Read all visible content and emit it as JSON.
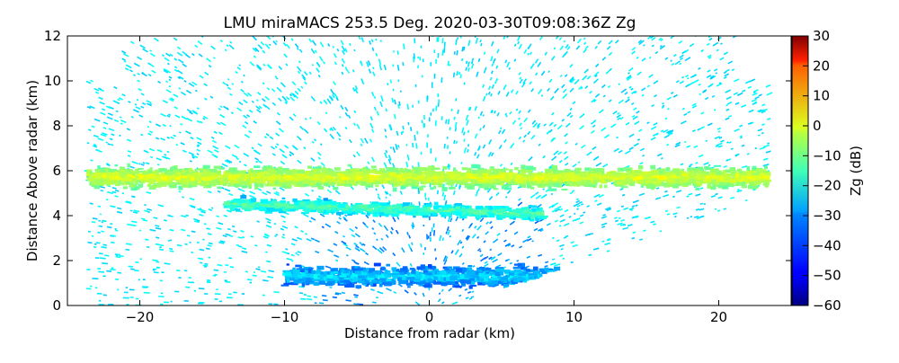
{
  "chart_data": {
    "type": "heatmap",
    "title": "LMU miraMACS 253.5 Deg. 2020-03-30T09:08:36Z  Zg",
    "xlabel": "Distance from radar (km)",
    "ylabel": "Distance Above radar  (km)",
    "xlim": [
      -25,
      25
    ],
    "ylim": [
      0,
      12
    ],
    "xticks": [
      -20,
      -10,
      0,
      10,
      20
    ],
    "yticks": [
      0,
      2,
      4,
      6,
      8,
      10,
      12
    ],
    "colorbar": {
      "label": "Zg (dB)",
      "range": [
        -60,
        30
      ],
      "ticks": [
        30,
        20,
        10,
        0,
        -10,
        -20,
        -30,
        -40,
        -50,
        -60
      ],
      "colormap": "jet"
    },
    "grid": false,
    "scan": {
      "left_extent_km": -23.5,
      "right_extent_km": 23.5,
      "max_height_km": 12
    },
    "features": [
      {
        "name": "cloud layer",
        "x": [
          -23.5,
          23.5
        ],
        "y_center": 5.7,
        "y_half_width": 0.6,
        "zg_dB": -12
      },
      {
        "name": "lower cloud tongue",
        "x": [
          -14,
          8
        ],
        "y_center": 4.3,
        "y_half_width": 0.4,
        "zg_dB": -25
      },
      {
        "name": "boundary layer",
        "x": [
          -10,
          10
        ],
        "y_center": 1.3,
        "y_half_width": 0.6,
        "zg_dB": -35
      },
      {
        "name": "sparse echoes",
        "zg_dB": -28
      }
    ]
  }
}
